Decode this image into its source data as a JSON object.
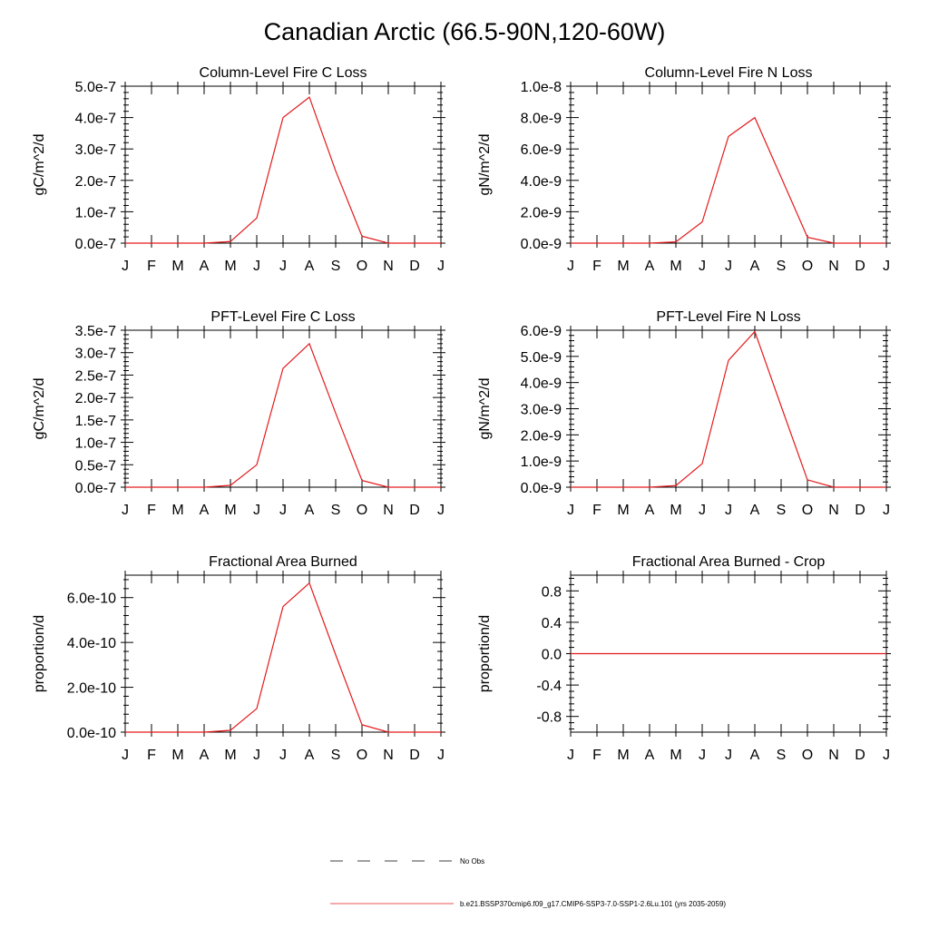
{
  "figure": {
    "title": "Canadian Arctic (66.5-90N,120-60W)",
    "series_color": "#e31a1c"
  },
  "legend": {
    "obs_label": "No Obs",
    "model_label": "b.e21.BSSP370cmip6.f09_g17.CMIP6-SSP3-7.0-SSP1-2.6Lu.101 (yrs 2035-2059)"
  },
  "chart_data": [
    {
      "type": "line",
      "title": "Column-Level Fire C Loss",
      "ylabel": "gC/m^2/d",
      "ylim": [
        0,
        5e-07
      ],
      "yticks": [
        0,
        1e-07,
        2e-07,
        3e-07,
        4e-07,
        5e-07
      ],
      "yticklabels": [
        "0.0e-7",
        "1.0e-7",
        "2.0e-7",
        "3.0e-7",
        "4.0e-7",
        "5.0e-7"
      ],
      "categories": [
        "J",
        "F",
        "M",
        "A",
        "M",
        "J",
        "J",
        "A",
        "S",
        "O",
        "N",
        "D",
        "J"
      ],
      "series": [
        {
          "values": [
            0,
            0,
            0,
            0,
            5e-09,
            8e-08,
            4e-07,
            4.65e-07,
            2.3e-07,
            2.2e-08,
            0,
            0,
            0
          ]
        }
      ],
      "grid": false
    },
    {
      "type": "line",
      "title": "Column-Level Fire N Loss",
      "ylabel": "gN/m^2/d",
      "ylim": [
        0,
        1e-08
      ],
      "yticks": [
        0,
        2e-09,
        4e-09,
        6e-09,
        8e-09,
        1e-08
      ],
      "yticklabels": [
        "0.0e-9",
        "2.0e-9",
        "4.0e-9",
        "6.0e-9",
        "8.0e-9",
        "1.0e-8"
      ],
      "categories": [
        "J",
        "F",
        "M",
        "A",
        "M",
        "J",
        "J",
        "A",
        "S",
        "O",
        "N",
        "D",
        "J"
      ],
      "series": [
        {
          "values": [
            0,
            0,
            0,
            0,
            8e-11,
            1.35e-09,
            6.8e-09,
            8e-09,
            4.2e-09,
            3.8e-10,
            0,
            0,
            0
          ]
        }
      ],
      "grid": false
    },
    {
      "type": "line",
      "title": "PFT-Level Fire C Loss",
      "ylabel": "gC/m^2/d",
      "ylim": [
        0,
        3.5e-07
      ],
      "yticks": [
        0,
        5e-08,
        1e-07,
        1.5e-07,
        2e-07,
        2.5e-07,
        3e-07,
        3.5e-07
      ],
      "yticklabels": [
        "0.0e-7",
        "0.5e-7",
        "1.0e-7",
        "1.5e-7",
        "2.0e-7",
        "2.5e-7",
        "3.0e-7",
        "3.5e-7"
      ],
      "categories": [
        "J",
        "F",
        "M",
        "A",
        "M",
        "J",
        "J",
        "A",
        "S",
        "O",
        "N",
        "D",
        "J"
      ],
      "series": [
        {
          "values": [
            0,
            0,
            0,
            0,
            4e-09,
            5e-08,
            2.65e-07,
            3.2e-07,
            1.65e-07,
            1.5e-08,
            0,
            0,
            0
          ]
        }
      ],
      "grid": false
    },
    {
      "type": "line",
      "title": "PFT-Level Fire N Loss",
      "ylabel": "gN/m^2/d",
      "ylim": [
        0,
        6e-09
      ],
      "yticks": [
        0,
        1e-09,
        2e-09,
        3e-09,
        4e-09,
        5e-09,
        6e-09
      ],
      "yticklabels": [
        "0.0e-9",
        "1.0e-9",
        "2.0e-9",
        "3.0e-9",
        "4.0e-9",
        "5.0e-9",
        "6.0e-9"
      ],
      "categories": [
        "J",
        "F",
        "M",
        "A",
        "M",
        "J",
        "J",
        "A",
        "S",
        "O",
        "N",
        "D",
        "J"
      ],
      "series": [
        {
          "values": [
            0,
            0,
            0,
            0,
            6e-11,
            9e-10,
            4.85e-09,
            5.95e-09,
            3.1e-09,
            2.8e-10,
            0,
            0,
            0
          ]
        }
      ],
      "grid": false
    },
    {
      "type": "line",
      "title": "Fractional Area Burned",
      "ylabel": "proportion/d",
      "ylim": [
        0,
        7e-10
      ],
      "yticks": [
        0,
        2e-10,
        4e-10,
        6e-10
      ],
      "yticklabels": [
        "0.0e-10",
        "2.0e-10",
        "4.0e-10",
        "6.0e-10"
      ],
      "categories": [
        "J",
        "F",
        "M",
        "A",
        "M",
        "J",
        "J",
        "A",
        "S",
        "O",
        "N",
        "D",
        "J"
      ],
      "series": [
        {
          "values": [
            0,
            0,
            0,
            0,
            8e-12,
            1.05e-10,
            5.6e-10,
            6.65e-10,
            3.45e-10,
            3.3e-11,
            0,
            0,
            0
          ]
        }
      ],
      "grid": false
    },
    {
      "type": "line",
      "title": "Fractional Area Burned - Crop",
      "ylabel": "proportion/d",
      "ylim": [
        -1,
        1
      ],
      "yticks": [
        -0.8,
        -0.4,
        0,
        0.4,
        0.8
      ],
      "yticklabels": [
        "-0.8",
        "-0.4",
        "0.0",
        "0.4",
        "0.8"
      ],
      "categories": [
        "J",
        "F",
        "M",
        "A",
        "M",
        "J",
        "J",
        "A",
        "S",
        "O",
        "N",
        "D",
        "J"
      ],
      "series": [
        {
          "values": [
            0,
            0,
            0,
            0,
            0,
            0,
            0,
            0,
            0,
            0,
            0,
            0,
            0
          ]
        }
      ],
      "grid": false
    }
  ]
}
